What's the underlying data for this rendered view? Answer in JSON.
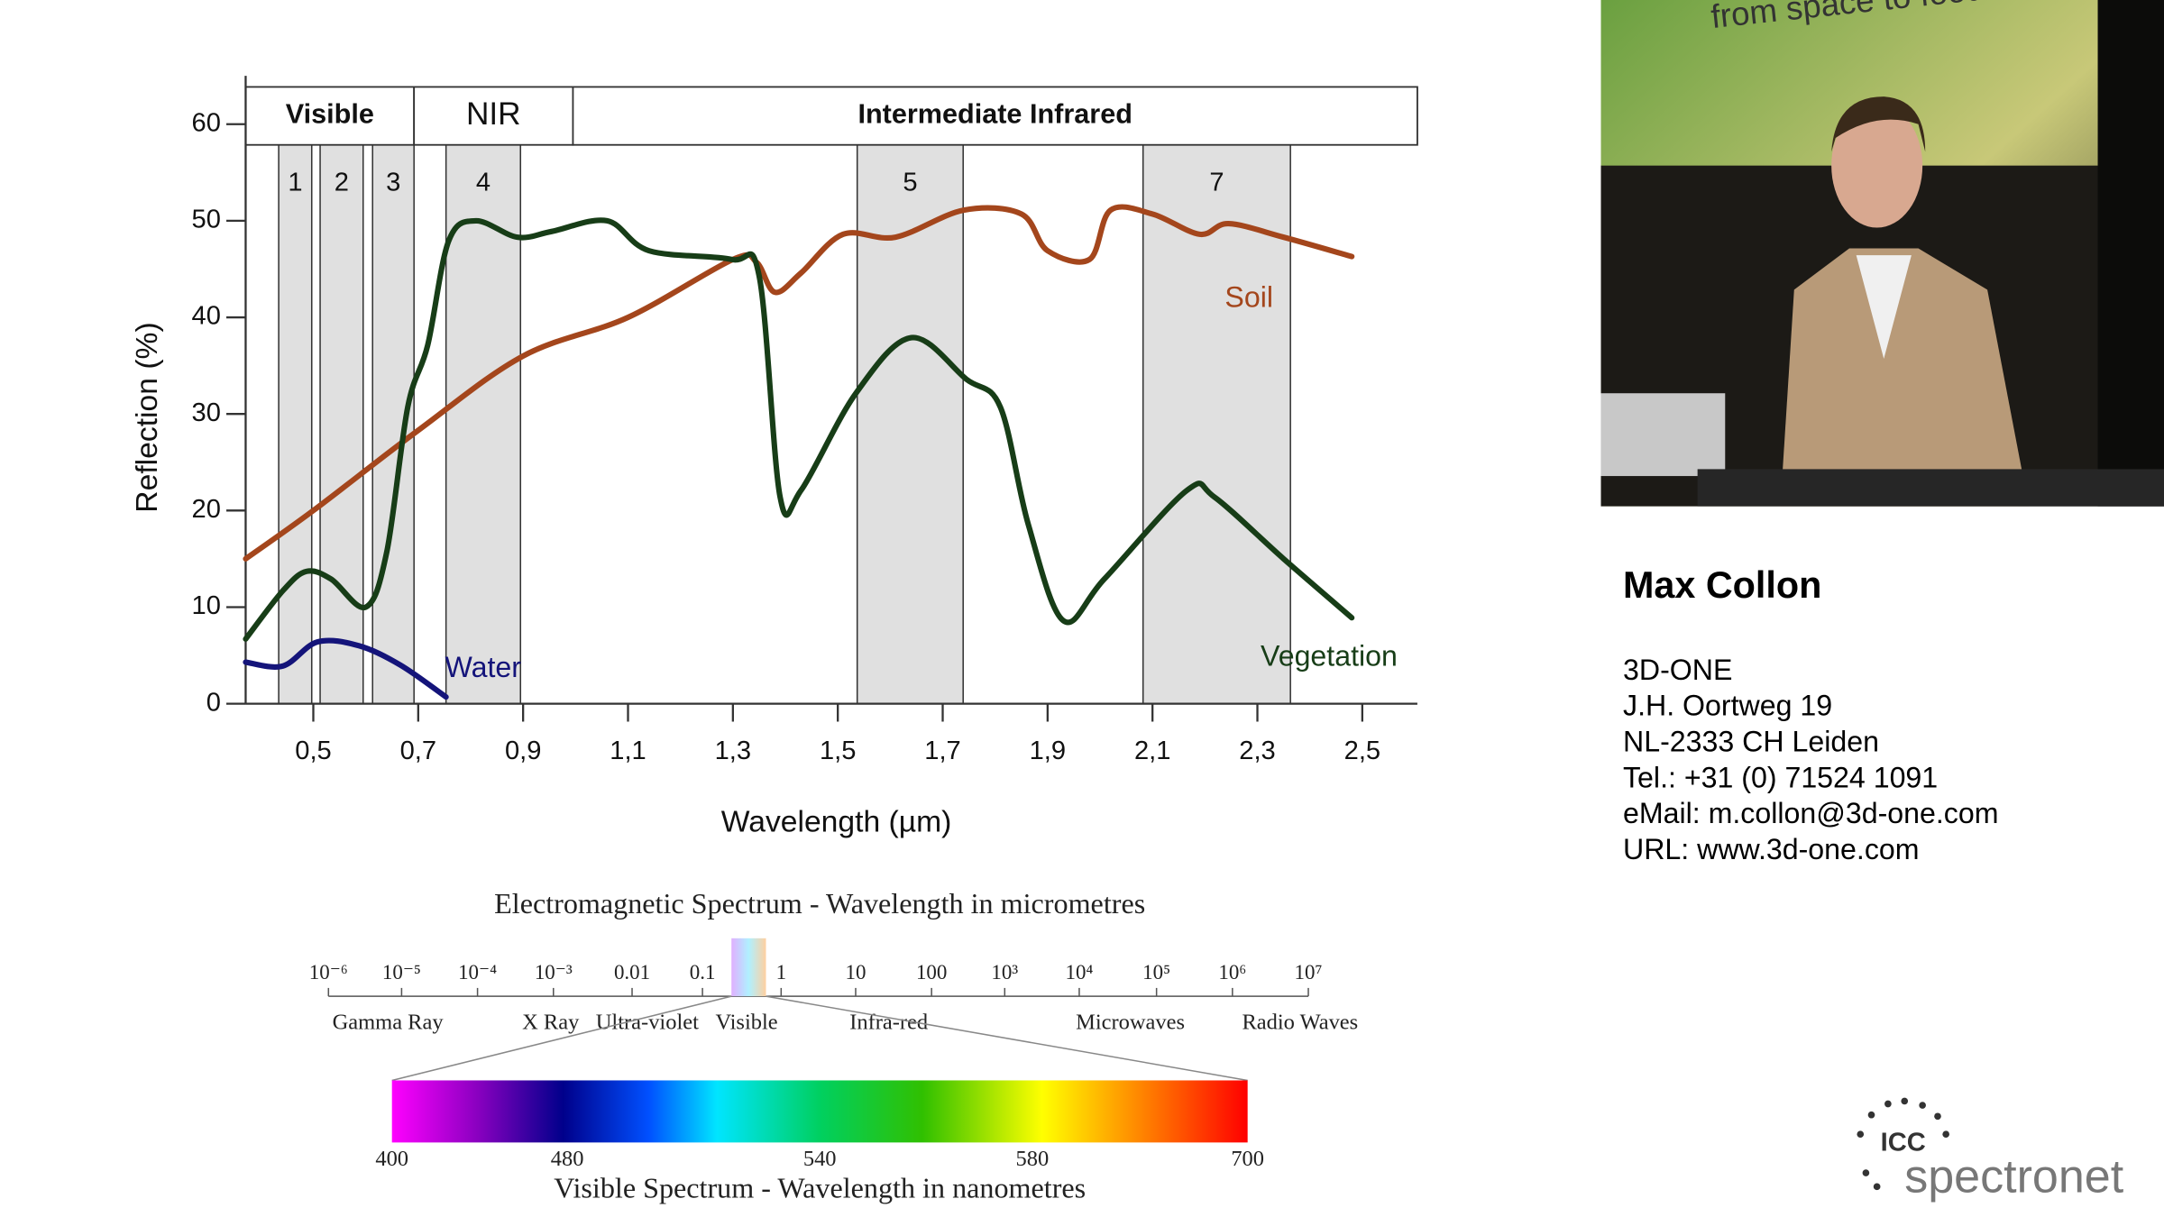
{
  "chart_data": {
    "type": "line",
    "ylabel": "Reflection (%)",
    "xlabel": "Wavelength (µm)",
    "xlim": [
      0.371,
      2.605
    ],
    "ylim": [
      0,
      65
    ],
    "xticks": [
      {
        "value": 0.5,
        "label": "0,5"
      },
      {
        "value": 0.7,
        "label": "0,7"
      },
      {
        "value": 0.9,
        "label": "0,9"
      },
      {
        "value": 1.1,
        "label": "1,1"
      },
      {
        "value": 1.3,
        "label": "1,3"
      },
      {
        "value": 1.5,
        "label": "1,5"
      },
      {
        "value": 1.7,
        "label": "1,7"
      },
      {
        "value": 1.9,
        "label": "1,9"
      },
      {
        "value": 2.1,
        "label": "2,1"
      },
      {
        "value": 2.3,
        "label": "2,3"
      },
      {
        "value": 2.5,
        "label": "2,5"
      }
    ],
    "yticks": [
      0,
      10,
      20,
      30,
      40,
      50,
      60
    ],
    "regions": [
      {
        "label": "Visible",
        "range": [
          0.371,
          0.692
        ]
      },
      {
        "label": "NIR",
        "range": [
          0.692,
          0.995
        ]
      },
      {
        "label": "Intermediate Infrared",
        "range": [
          0.995,
          2.605
        ]
      }
    ],
    "bands": [
      {
        "label": "1",
        "range": [
          0.434,
          0.497
        ]
      },
      {
        "label": "2",
        "range": [
          0.513,
          0.595
        ]
      },
      {
        "label": "3",
        "range": [
          0.613,
          0.692
        ]
      },
      {
        "label": "4",
        "range": [
          0.753,
          0.895
        ]
      },
      {
        "label": "5",
        "range": [
          1.537,
          1.739
        ]
      },
      {
        "label": "7",
        "range": [
          2.082,
          2.363
        ]
      }
    ],
    "series": [
      {
        "name": "Soil",
        "color": "#a4461c",
        "x": [
          0.371,
          0.5,
          0.7,
          0.9,
          1.1,
          1.3,
          1.345,
          1.38,
          1.43,
          1.51,
          1.61,
          1.74,
          1.85,
          1.9,
          1.98,
          2.02,
          2.1,
          2.19,
          2.245,
          2.35,
          2.48
        ],
        "values": [
          15,
          20,
          28.3,
          36,
          40,
          46,
          45.7,
          42.6,
          44.6,
          48.6,
          48.3,
          51.1,
          50.7,
          46.9,
          46,
          51.1,
          50.7,
          48.6,
          49.7,
          48.3,
          46.3
        ]
      },
      {
        "name": "Vegetation",
        "color": "#173d17",
        "x": [
          0.371,
          0.442,
          0.487,
          0.534,
          0.6,
          0.64,
          0.68,
          0.718,
          0.758,
          0.81,
          0.889,
          0.955,
          1.06,
          1.14,
          1.297,
          1.35,
          1.39,
          1.43,
          1.534,
          1.64,
          1.745,
          1.81,
          1.863,
          1.93,
          2.008,
          2.166,
          2.218,
          2.35,
          2.48
        ],
        "values": [
          6.7,
          11.7,
          13.7,
          12.9,
          10,
          15.7,
          30.7,
          37.1,
          47.9,
          50,
          48.3,
          48.9,
          50,
          46.9,
          46,
          44.3,
          21.4,
          22.1,
          32.1,
          37.9,
          33.6,
          30.7,
          18.6,
          8.6,
          12.9,
          22.1,
          21.4,
          15,
          8.9
        ]
      },
      {
        "name": "Water",
        "color": "#14147a",
        "x": [
          0.371,
          0.442,
          0.508,
          0.587,
          0.666,
          0.753
        ],
        "values": [
          4.3,
          3.9,
          6.4,
          6,
          4,
          0.7
        ]
      }
    ]
  },
  "spectrum": {
    "title": "Electromagnetic Spectrum - Wavelength in micrometres",
    "ticks": [
      "10⁻⁶",
      "10⁻⁵",
      "10⁻⁴",
      "10⁻³",
      "0.01",
      "0.1",
      "1",
      "10",
      "100",
      "10³",
      "10⁴",
      "10⁵",
      "10⁶",
      "10⁷"
    ],
    "regions": [
      "Gamma Ray",
      "X Ray",
      "Ultra-violet",
      "Visible",
      "Infra-red",
      "Microwaves",
      "Radio Waves"
    ],
    "visible_ticks": [
      "400",
      "480",
      "540",
      "580",
      "700"
    ],
    "visible_caption": "Visible Spectrum - Wavelength in nanometres"
  },
  "video": {
    "slide_title": "from space to food"
  },
  "speaker": {
    "name": "Max Collon",
    "lines": [
      "3D-ONE",
      "J.H. Oortweg 19",
      "NL-2333 CH Leiden",
      "Tel.: +31 (0) 71524 1091",
      "eMail: m.collon@3d-one.com",
      "URL: www.3d-one.com"
    ]
  },
  "logo": {
    "mark": "ICC",
    "name": "spectronet"
  }
}
